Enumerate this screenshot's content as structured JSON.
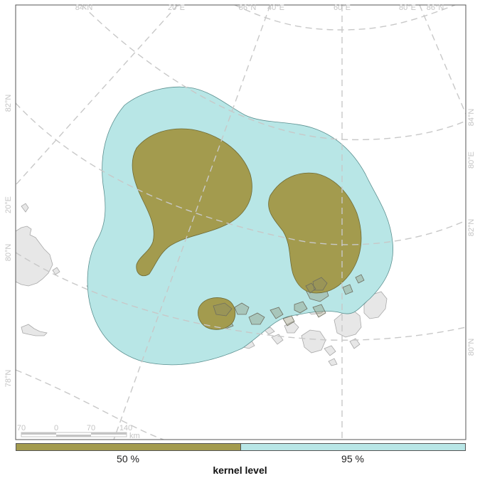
{
  "graticule_labels": {
    "top": [
      "84°N",
      "20°E",
      "86°N",
      "40°E",
      "60°E",
      "80°E",
      "86°N"
    ],
    "left": [
      "82°N",
      "20°E",
      "80°N",
      "78°N"
    ],
    "right": [
      "84°N",
      "80°E",
      "82°N",
      "80°N"
    ]
  },
  "scalebar": {
    "ticks": [
      "70",
      "0",
      "70",
      "140"
    ],
    "unit": "km"
  },
  "legend": {
    "title": "kernel level",
    "items": [
      {
        "label": "50 %",
        "color": "#a39b4e"
      },
      {
        "label": "95 %",
        "color": "#b8e6e6"
      }
    ]
  }
}
